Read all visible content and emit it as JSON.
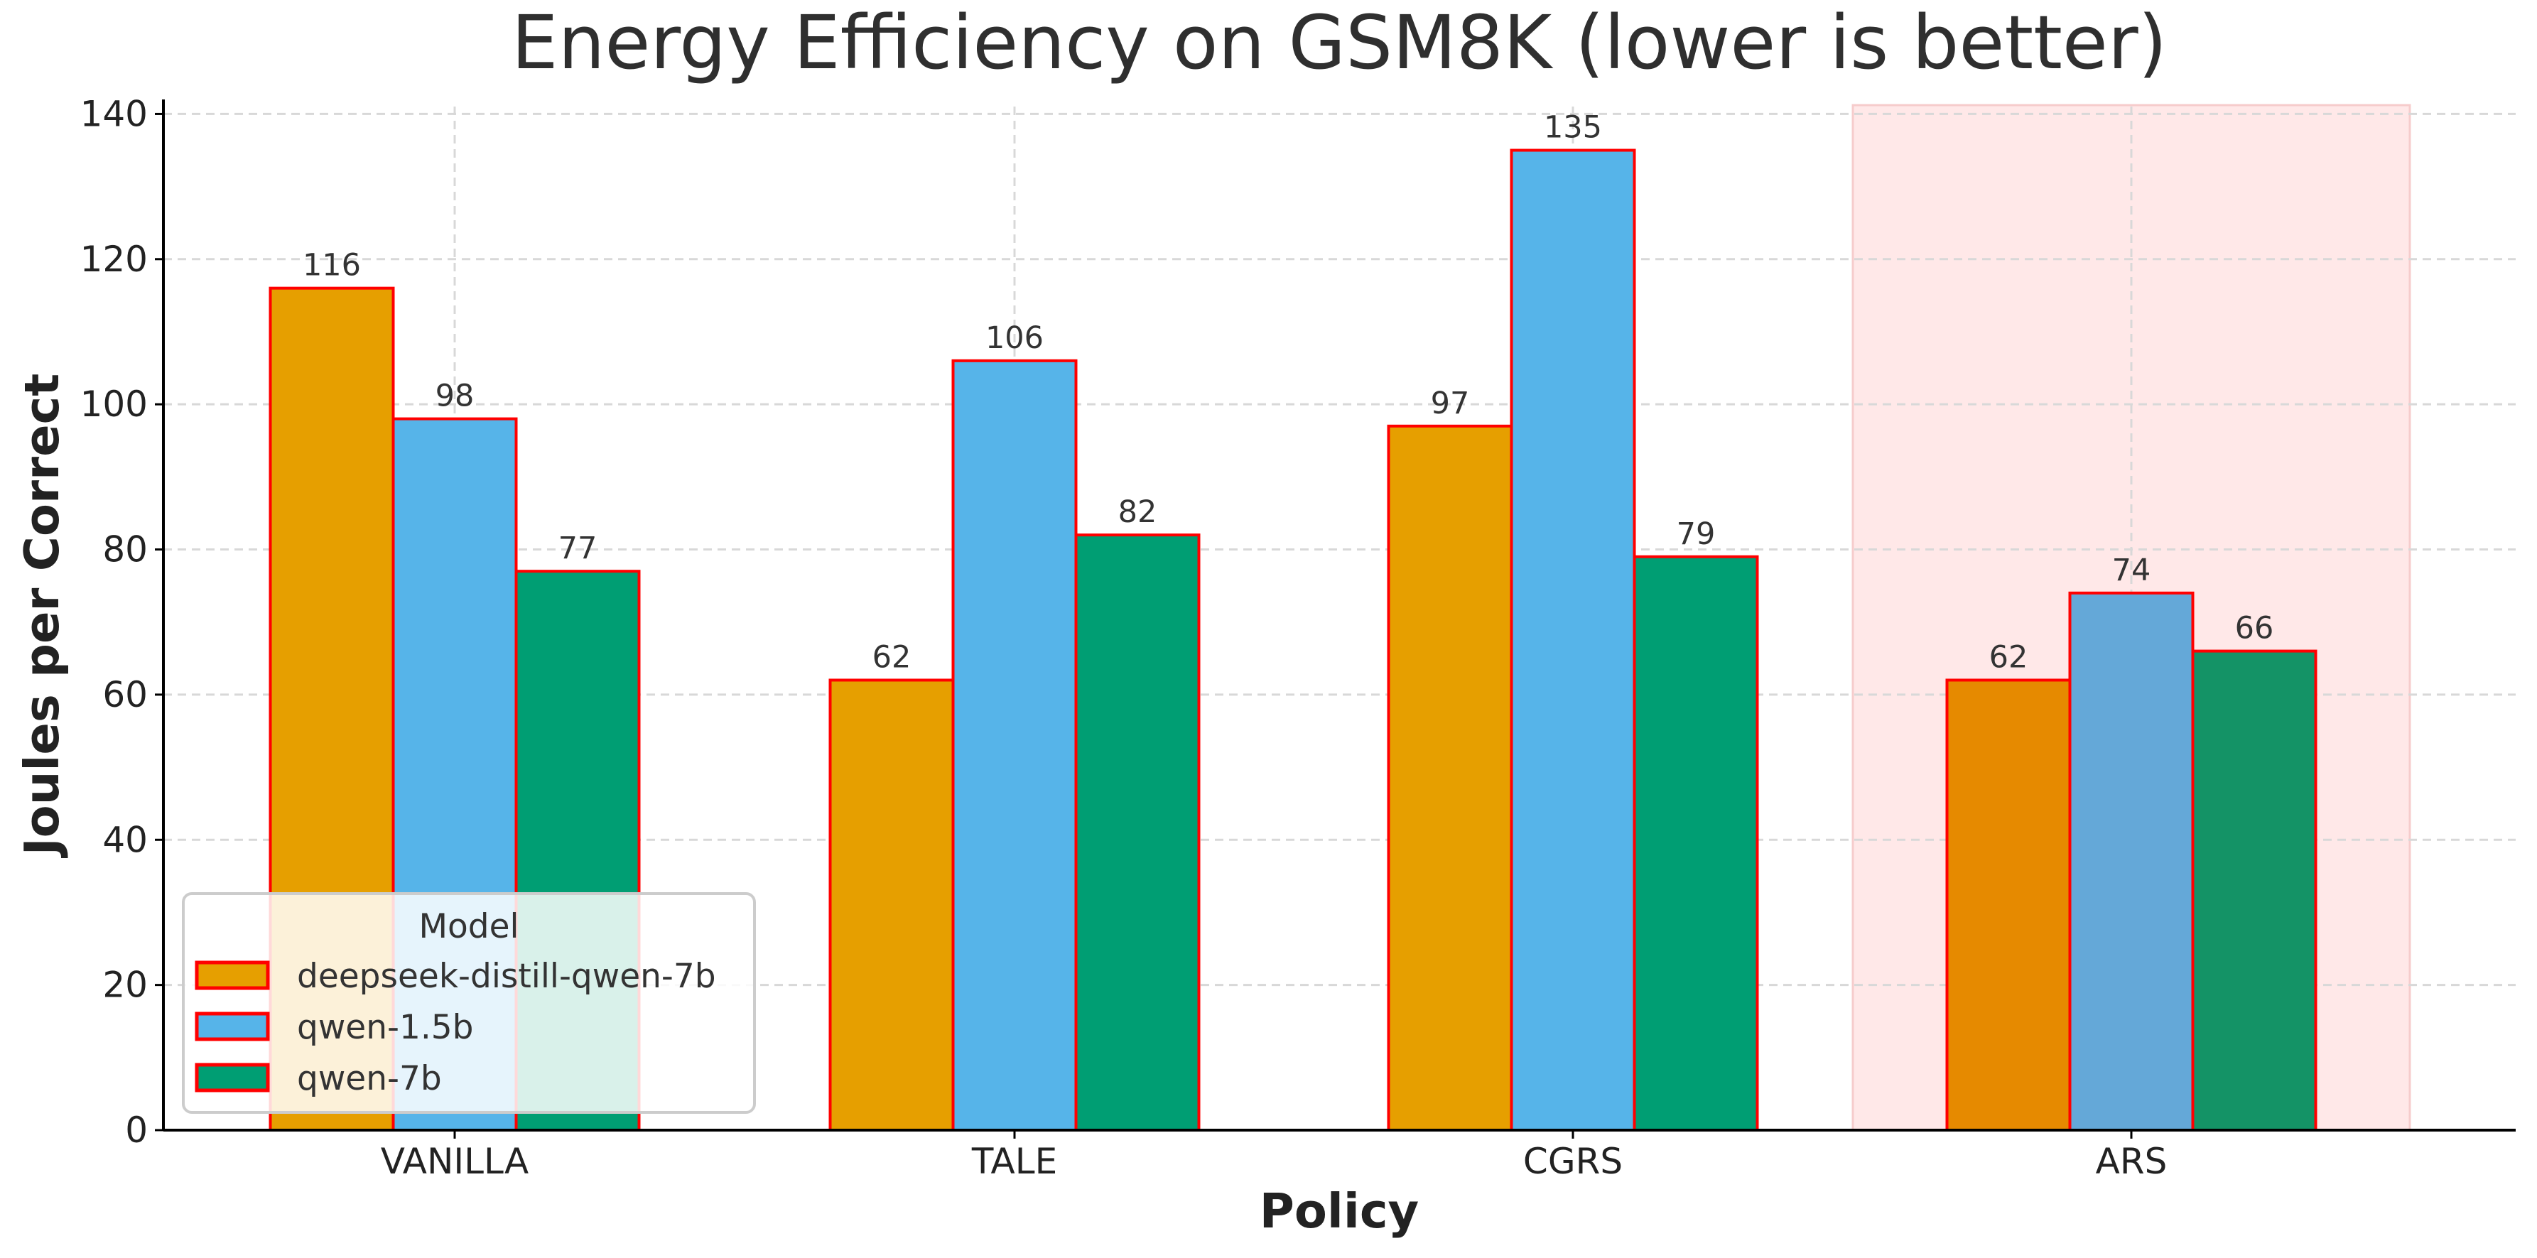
{
  "chart_data": {
    "type": "bar",
    "title": "Energy Efficiency on GSM8K (lower is better)",
    "xlabel": "Policy",
    "ylabel": "Joules per Correct",
    "categories": [
      "VANILLA",
      "TALE",
      "CGRS",
      "ARS"
    ],
    "series": [
      {
        "name": "deepseek-distill-qwen-7b",
        "values": [
          116,
          62,
          97,
          62
        ],
        "labels": [
          "116",
          "62",
          "97",
          "62"
        ]
      },
      {
        "name": "qwen-1.5b",
        "values": [
          98,
          106,
          135,
          74
        ],
        "labels": [
          "98",
          "106",
          "135",
          "74"
        ]
      },
      {
        "name": "qwen-7b",
        "values": [
          77,
          82,
          79,
          66
        ],
        "labels": [
          "77",
          "82",
          "79",
          "66"
        ]
      }
    ],
    "ylim": [
      0,
      142
    ],
    "yticks": [
      0,
      20,
      40,
      60,
      80,
      100,
      120,
      140
    ],
    "ytick_labels": [
      "0",
      "20",
      "40",
      "60",
      "80",
      "100",
      "120",
      "140"
    ],
    "grid": true,
    "highlight_category": "ARS",
    "legend": {
      "title": "Model",
      "placement": "lower-left"
    }
  },
  "colors": {
    "series": [
      "#E69F00",
      "#56B4E9",
      "#009E73"
    ],
    "highlight_series": [
      "#E68A00",
      "#64A8D8",
      "#149366"
    ],
    "bar_edge": "#ff0000",
    "highlight_band": "#ffe8e8",
    "grid": "#d8d8d8",
    "axis": "#000000"
  }
}
